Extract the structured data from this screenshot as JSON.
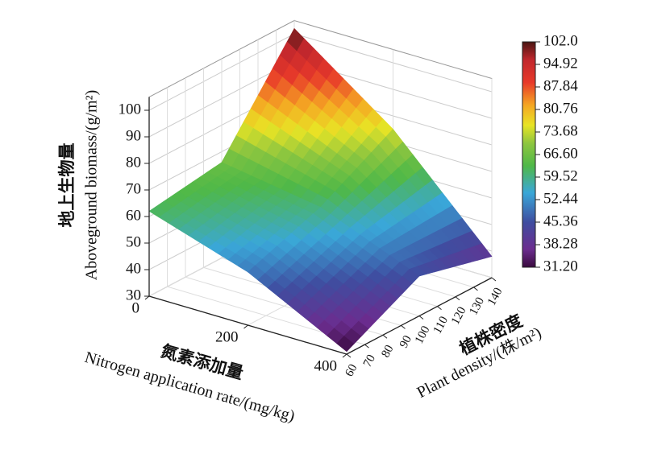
{
  "chart_data": {
    "type": "surface",
    "xlabel": [
      "氮素添加量",
      "Nitrogen application rate/(mg/kg)"
    ],
    "ylabel": [
      "植株密度",
      "Plant density/(株/m²)"
    ],
    "zlabel": [
      "地上生物量",
      "Aboveground biomass/(g/m²)"
    ],
    "x": [
      0,
      200,
      400
    ],
    "y": [
      60,
      100,
      140
    ],
    "z": [
      [
        62,
        66,
        102
      ],
      [
        50,
        60,
        75
      ],
      [
        31,
        45,
        38
      ]
    ],
    "xlim": [
      0,
      400
    ],
    "ylim": [
      60,
      140
    ],
    "zlim": [
      30,
      105
    ],
    "xticks": [
      0,
      200,
      400
    ],
    "yticks": [
      60,
      70,
      80,
      90,
      100,
      110,
      120,
      130,
      140
    ],
    "zticks": [
      30,
      40,
      50,
      60,
      70,
      80,
      90,
      100
    ],
    "grid": true,
    "colorbar": {
      "lim": [
        31.2,
        102
      ],
      "ticks": [
        {
          "value": 102,
          "label": "102.0"
        },
        94.92,
        87.84,
        80.76,
        73.68,
        {
          "value": 66.6,
          "label": "66.60"
        },
        59.52,
        52.44,
        45.36,
        38.28,
        {
          "value": 31.2,
          "label": "31.20"
        }
      ]
    }
  }
}
